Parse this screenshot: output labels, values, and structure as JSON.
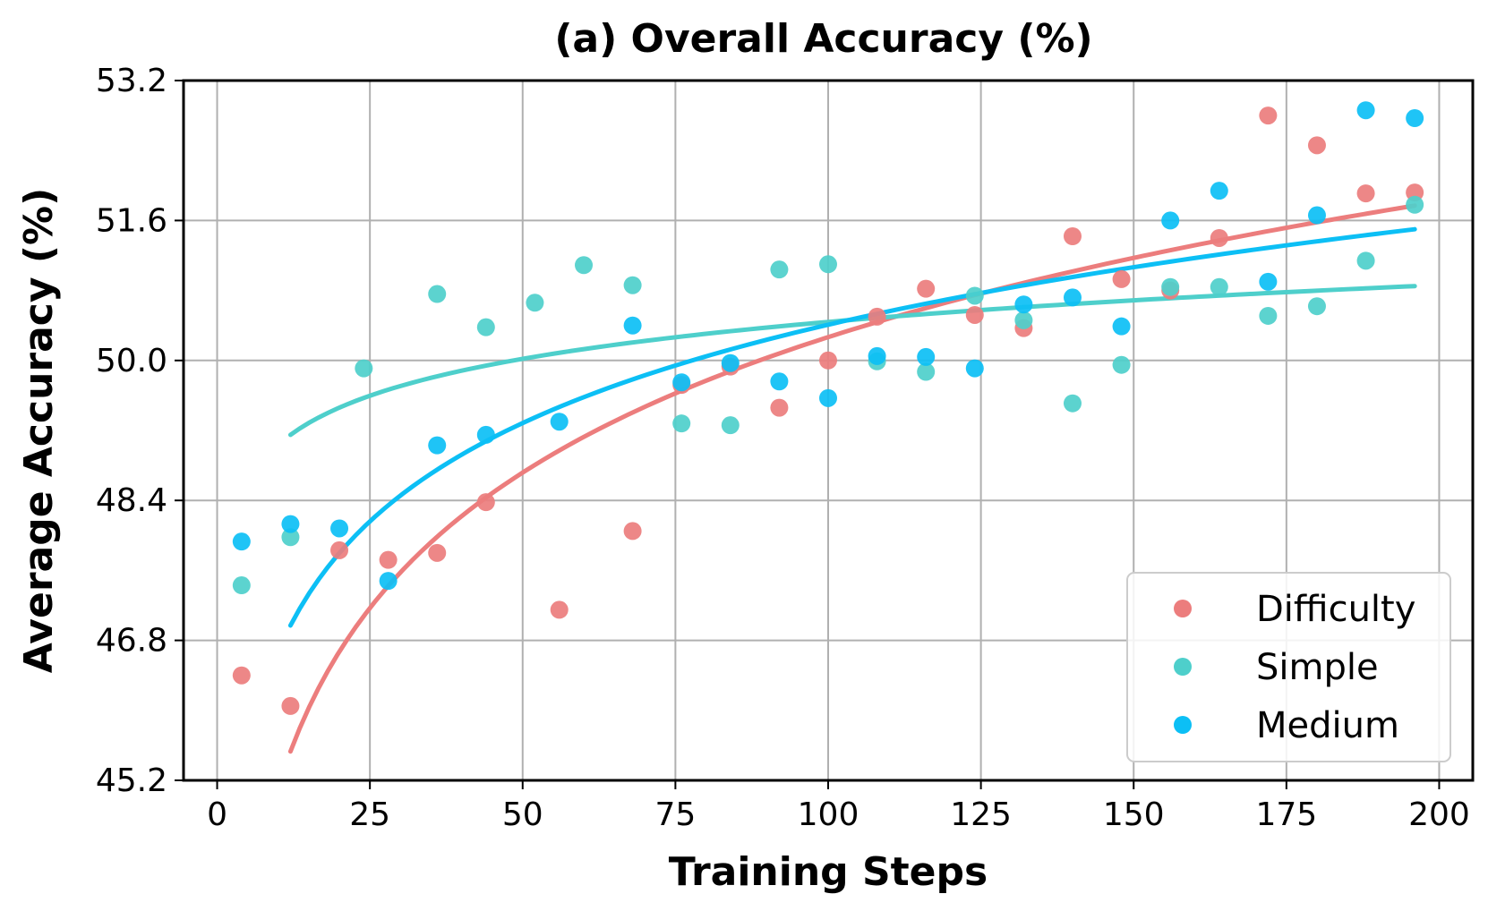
{
  "chart_data": {
    "type": "scatter",
    "title": "(a) Overall Accuracy (%)",
    "xlabel": "Training Steps",
    "ylabel": "Average Accuracy (%)",
    "xlim": [
      -5.5,
      205.5
    ],
    "ylim": [
      45.2,
      53.2
    ],
    "xticks": [
      0,
      25,
      50,
      75,
      100,
      125,
      150,
      175,
      200
    ],
    "yticks": [
      45.2,
      46.8,
      48.4,
      50.0,
      51.6,
      53.2
    ],
    "ytick_labels": [
      "45.2",
      "46.8",
      "48.4",
      "50.0",
      "51.6",
      "53.2"
    ],
    "grid": true,
    "legend_position": "bottom-right",
    "series": [
      {
        "name": "Difficulty",
        "color": "#ec7d7d",
        "x": [
          4,
          12,
          20,
          28,
          36,
          44,
          56,
          68,
          76,
          84,
          92,
          100,
          108,
          116,
          124,
          132,
          140,
          148,
          156,
          164,
          172,
          180,
          188,
          196
        ],
        "y": [
          46.4,
          46.05,
          47.83,
          47.72,
          47.8,
          48.38,
          47.15,
          48.05,
          49.72,
          49.93,
          49.46,
          50.0,
          50.5,
          50.82,
          50.52,
          50.37,
          51.42,
          50.93,
          50.8,
          51.4,
          52.8,
          52.46,
          51.91,
          51.92
        ],
        "trend_x": [
          12,
          196
        ],
        "trend_y": [
          45.53,
          51.77
        ]
      },
      {
        "name": "Simple",
        "color": "#4ecfcb",
        "x": [
          4,
          12,
          24,
          36,
          44,
          52,
          60,
          68,
          76,
          84,
          92,
          100,
          108,
          116,
          124,
          132,
          140,
          148,
          156,
          164,
          172,
          180,
          188,
          196
        ],
        "y": [
          47.43,
          47.98,
          49.91,
          50.76,
          50.38,
          50.66,
          51.09,
          50.86,
          49.28,
          49.26,
          51.04,
          51.1,
          49.99,
          49.87,
          50.74,
          50.46,
          49.51,
          49.95,
          50.84,
          50.84,
          50.51,
          50.62,
          51.14,
          51.78
        ],
        "trend_x": [
          12,
          196
        ],
        "trend_y": [
          49.15,
          50.85
        ]
      },
      {
        "name": "Medium",
        "color": "#0cbff5",
        "x": [
          4,
          12,
          20,
          28,
          36,
          44,
          56,
          68,
          76,
          84,
          92,
          100,
          108,
          116,
          124,
          132,
          140,
          148,
          156,
          164,
          172,
          180,
          188,
          196
        ],
        "y": [
          47.93,
          48.13,
          48.08,
          47.48,
          49.03,
          49.15,
          49.3,
          50.4,
          49.75,
          49.97,
          49.76,
          49.57,
          50.05,
          50.04,
          49.91,
          50.64,
          50.72,
          50.39,
          51.6,
          51.94,
          50.9,
          51.66,
          52.86,
          52.77
        ],
        "trend_x": [
          12,
          196
        ],
        "trend_y": [
          46.97,
          51.5
        ]
      }
    ]
  }
}
